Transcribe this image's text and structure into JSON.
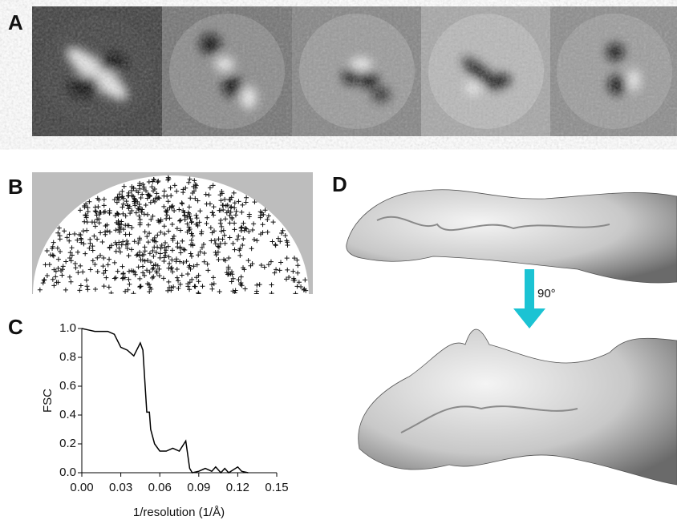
{
  "panels": {
    "a": "A",
    "b": "B",
    "c": "C",
    "d": "D",
    "rotation": "90°"
  },
  "chart_data": {
    "type": "line",
    "x_label": "1/resolution (1/Å)",
    "y_label": "FSC",
    "x": [
      0,
      0.005,
      0.01,
      0.015,
      0.02,
      0.025,
      0.03,
      0.035,
      0.04,
      0.045,
      0.047,
      0.05,
      0.052,
      0.053,
      0.056,
      0.06,
      0.065,
      0.07,
      0.075,
      0.08,
      0.083,
      0.085,
      0.09,
      0.095,
      0.1,
      0.103,
      0.107,
      0.11,
      0.113,
      0.12,
      0.123,
      0.128
    ],
    "values": [
      1.0,
      0.99,
      0.98,
      0.98,
      0.98,
      0.96,
      0.87,
      0.85,
      0.81,
      0.9,
      0.85,
      0.42,
      0.42,
      0.3,
      0.2,
      0.15,
      0.15,
      0.17,
      0.15,
      0.22,
      0.03,
      0.0,
      0.01,
      0.03,
      0.01,
      0.04,
      0.0,
      0.03,
      0.0,
      0.04,
      0.01,
      0.0
    ],
    "color": "#000000",
    "xlim": [
      0,
      0.15
    ],
    "ylim": [
      0,
      1.0
    ],
    "xticks": [
      {
        "value": 0,
        "label": "0.00"
      },
      {
        "value": 0.03,
        "label": "0.03"
      },
      {
        "value": 0.06,
        "label": "0.06"
      },
      {
        "value": 0.09,
        "label": "0.09"
      },
      {
        "value": 0.12,
        "label": "0.12"
      },
      {
        "value": 0.15,
        "label": "0.15"
      }
    ],
    "yticks": [
      {
        "value": 0,
        "label": "0.0"
      },
      {
        "value": 0.2,
        "label": "0.2"
      },
      {
        "value": 0.4,
        "label": "0.4"
      },
      {
        "value": 0.6,
        "label": "0.6"
      },
      {
        "value": 0.8,
        "label": "0.8"
      },
      {
        "value": 1.0,
        "label": "1.0"
      }
    ],
    "grid": false
  }
}
